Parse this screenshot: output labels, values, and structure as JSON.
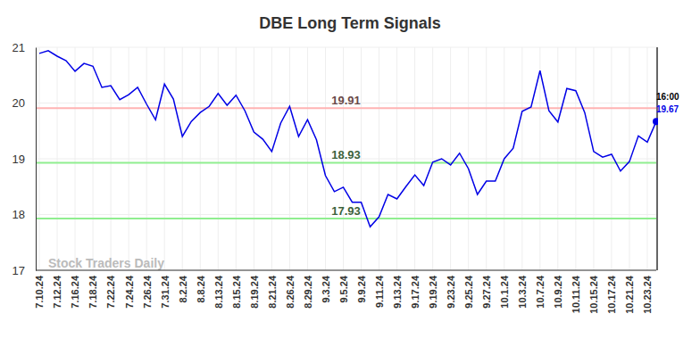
{
  "chart_data": {
    "type": "line",
    "title": "DBE Long Term Signals",
    "categories": [
      "7.10.24",
      null,
      "7.12.24",
      null,
      "7.16.24",
      null,
      "7.18.24",
      null,
      "7.22.24",
      null,
      "7.24.24",
      null,
      "7.26.24",
      null,
      "7.31.24",
      null,
      "8.2.24",
      null,
      "8.8.24",
      null,
      "8.13.24",
      null,
      "8.15.24",
      null,
      "8.19.24",
      null,
      "8.21.24",
      null,
      "8.26.24",
      null,
      "8.29.24",
      null,
      "9.3.24",
      null,
      "9.5.24",
      null,
      "9.9.24",
      null,
      "9.11.24",
      null,
      "9.13.24",
      null,
      "9.17.24",
      null,
      "9.19.24",
      null,
      "9.23.24",
      null,
      "9.25.24",
      null,
      "9.27.24",
      null,
      "10.1.24",
      null,
      "10.3.24",
      null,
      "10.7.24",
      null,
      "10.9.24",
      null,
      "10.11.24",
      null,
      "10.15.24",
      null,
      "10.17.24",
      null,
      "10.21.24",
      null,
      "10.23.24",
      null
    ],
    "values": [
      20.89,
      20.94,
      20.84,
      20.76,
      20.57,
      20.71,
      20.66,
      20.28,
      20.31,
      20.06,
      20.15,
      20.28,
      19.98,
      19.7,
      20.34,
      20.07,
      19.4,
      19.67,
      19.83,
      19.94,
      20.17,
      19.96,
      20.14,
      19.86,
      19.48,
      19.35,
      19.13,
      19.64,
      19.94,
      19.4,
      19.7,
      19.34,
      18.7,
      18.41,
      18.49,
      18.22,
      18.22,
      17.78,
      17.96,
      18.36,
      18.28,
      18.5,
      18.71,
      18.52,
      18.94,
      19.0,
      18.89,
      19.1,
      18.82,
      18.36,
      18.6,
      18.6,
      19.0,
      19.19,
      19.85,
      19.93,
      20.58,
      19.86,
      19.66,
      20.26,
      20.22,
      19.83,
      19.13,
      19.03,
      19.08,
      18.78,
      18.95,
      19.41,
      19.3,
      19.67
    ],
    "color": "#0000e6",
    "ylim": [
      17,
      21
    ],
    "yticks": [
      17,
      18,
      19,
      20,
      21
    ],
    "grid": true,
    "reference_lines": [
      {
        "value": 19.91,
        "color": "#ffb3b3"
      },
      {
        "value": 18.93,
        "color": "#90ee90"
      },
      {
        "value": 17.93,
        "color": "#90ee90"
      }
    ],
    "last_label": "16:00",
    "watermark": "Stock Traders Daily"
  }
}
